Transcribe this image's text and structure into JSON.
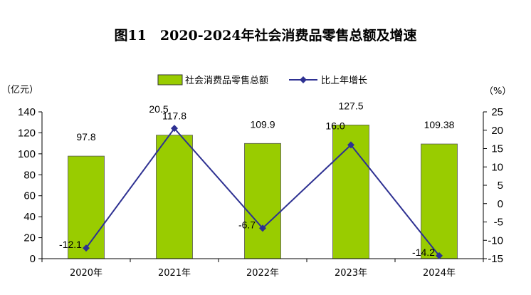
{
  "chart_data": {
    "type": "bar-line-combo",
    "title": "图11　2020-2024年社会消费品零售总额及增速",
    "y_left_unit": "（亿元）",
    "y_right_unit": "（%）",
    "y_left_ticks": [
      "0",
      "20",
      "40",
      "60",
      "80",
      "100",
      "120",
      "140"
    ],
    "y_right_ticks": [
      "-15",
      "-10",
      "-5",
      "0",
      "5",
      "10",
      "15",
      "20",
      "25"
    ],
    "ylim_left": [
      0,
      140
    ],
    "ylim_right": [
      -15,
      25
    ],
    "categories": [
      "2020年",
      "2021年",
      "2022年",
      "2023年",
      "2024年"
    ],
    "series": [
      {
        "name": "社会消费品零售总额",
        "kind": "bar",
        "axis": "left",
        "color": "#99cc00",
        "values": [
          97.8,
          117.8,
          109.9,
          127.5,
          109.38
        ],
        "labels": [
          "97.8",
          "117.8",
          "109.9",
          "127.5",
          "109.38"
        ]
      },
      {
        "name": "比上年增长",
        "kind": "line",
        "axis": "right",
        "color": "#2e3192",
        "values": [
          -12.1,
          20.5,
          -6.7,
          16.0,
          -14.2
        ],
        "labels": [
          "-12.1",
          "20.5",
          "-6.7",
          "16.0",
          "-14.2"
        ]
      }
    ],
    "legend_position": "top-center",
    "grid": false
  }
}
